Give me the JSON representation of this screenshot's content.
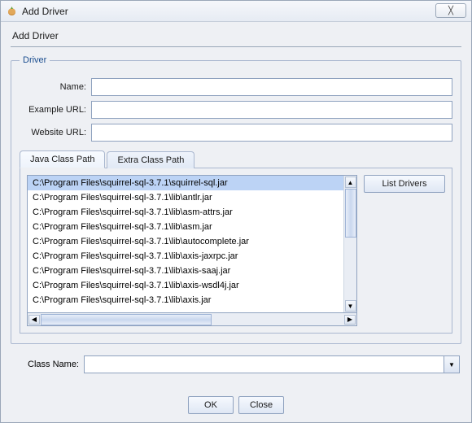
{
  "window": {
    "title": "Add Driver",
    "close_glyph": "╳"
  },
  "heading": "Add Driver",
  "driver_group": {
    "legend": "Driver",
    "name_label": "Name:",
    "name_value": "",
    "example_url_label": "Example URL:",
    "example_url_value": "",
    "website_url_label": "Website URL:",
    "website_url_value": ""
  },
  "tabs": {
    "java": "Java Class Path",
    "extra": "Extra Class Path",
    "active_index": 0
  },
  "classpath_items": [
    "C:\\Program Files\\squirrel-sql-3.7.1\\squirrel-sql.jar",
    "C:\\Program Files\\squirrel-sql-3.7.1\\lib\\antlr.jar",
    "C:\\Program Files\\squirrel-sql-3.7.1\\lib\\asm-attrs.jar",
    "C:\\Program Files\\squirrel-sql-3.7.1\\lib\\asm.jar",
    "C:\\Program Files\\squirrel-sql-3.7.1\\lib\\autocomplete.jar",
    "C:\\Program Files\\squirrel-sql-3.7.1\\lib\\axis-jaxrpc.jar",
    "C:\\Program Files\\squirrel-sql-3.7.1\\lib\\axis-saaj.jar",
    "C:\\Program Files\\squirrel-sql-3.7.1\\lib\\axis-wsdl4j.jar",
    "C:\\Program Files\\squirrel-sql-3.7.1\\lib\\axis.jar"
  ],
  "selected_item_index": 0,
  "buttons": {
    "list_drivers": "List Drivers",
    "ok": "OK",
    "close": "Close"
  },
  "classname": {
    "label": "Class Name:",
    "value": ""
  },
  "glyphs": {
    "up": "▲",
    "down": "▼",
    "left": "◀",
    "right": "▶"
  },
  "colors": {
    "selection_bg": "#bcd3f5",
    "border": "#8fa2bf"
  }
}
